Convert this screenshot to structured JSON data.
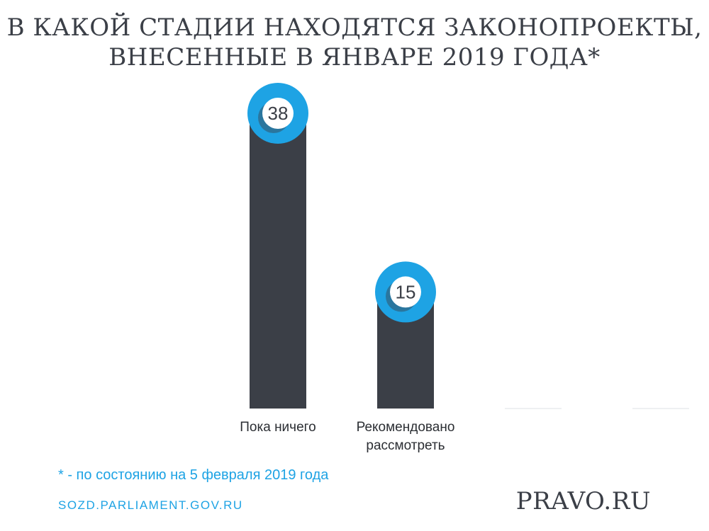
{
  "title": {
    "line1": "В КАКОЙ СТАДИИ НАХОДЯТСЯ ЗАКОНОПРОЕКТЫ,",
    "line2": "ВНЕСЕННЫЕ В ЯНВАРЕ 2019 ГОДА*"
  },
  "footnote": "* - по состоянию на 5 февраля 2019 года",
  "source": "SOZD.PARLIAMENT.GOV.RU",
  "brand": "PRAVO.RU",
  "colors": {
    "bar": "#3b3f47",
    "accent": "#1ea3e4",
    "baseline": "#eef0f2"
  },
  "chart_data": {
    "type": "bar",
    "categories": [
      [
        "Пока ничего"
      ],
      [
        "Рекомендовано",
        "рассмотреть"
      ],
      [
        ""
      ],
      [
        ""
      ]
    ],
    "values": [
      38,
      15,
      0,
      0
    ],
    "ylim": [
      0,
      38
    ]
  }
}
